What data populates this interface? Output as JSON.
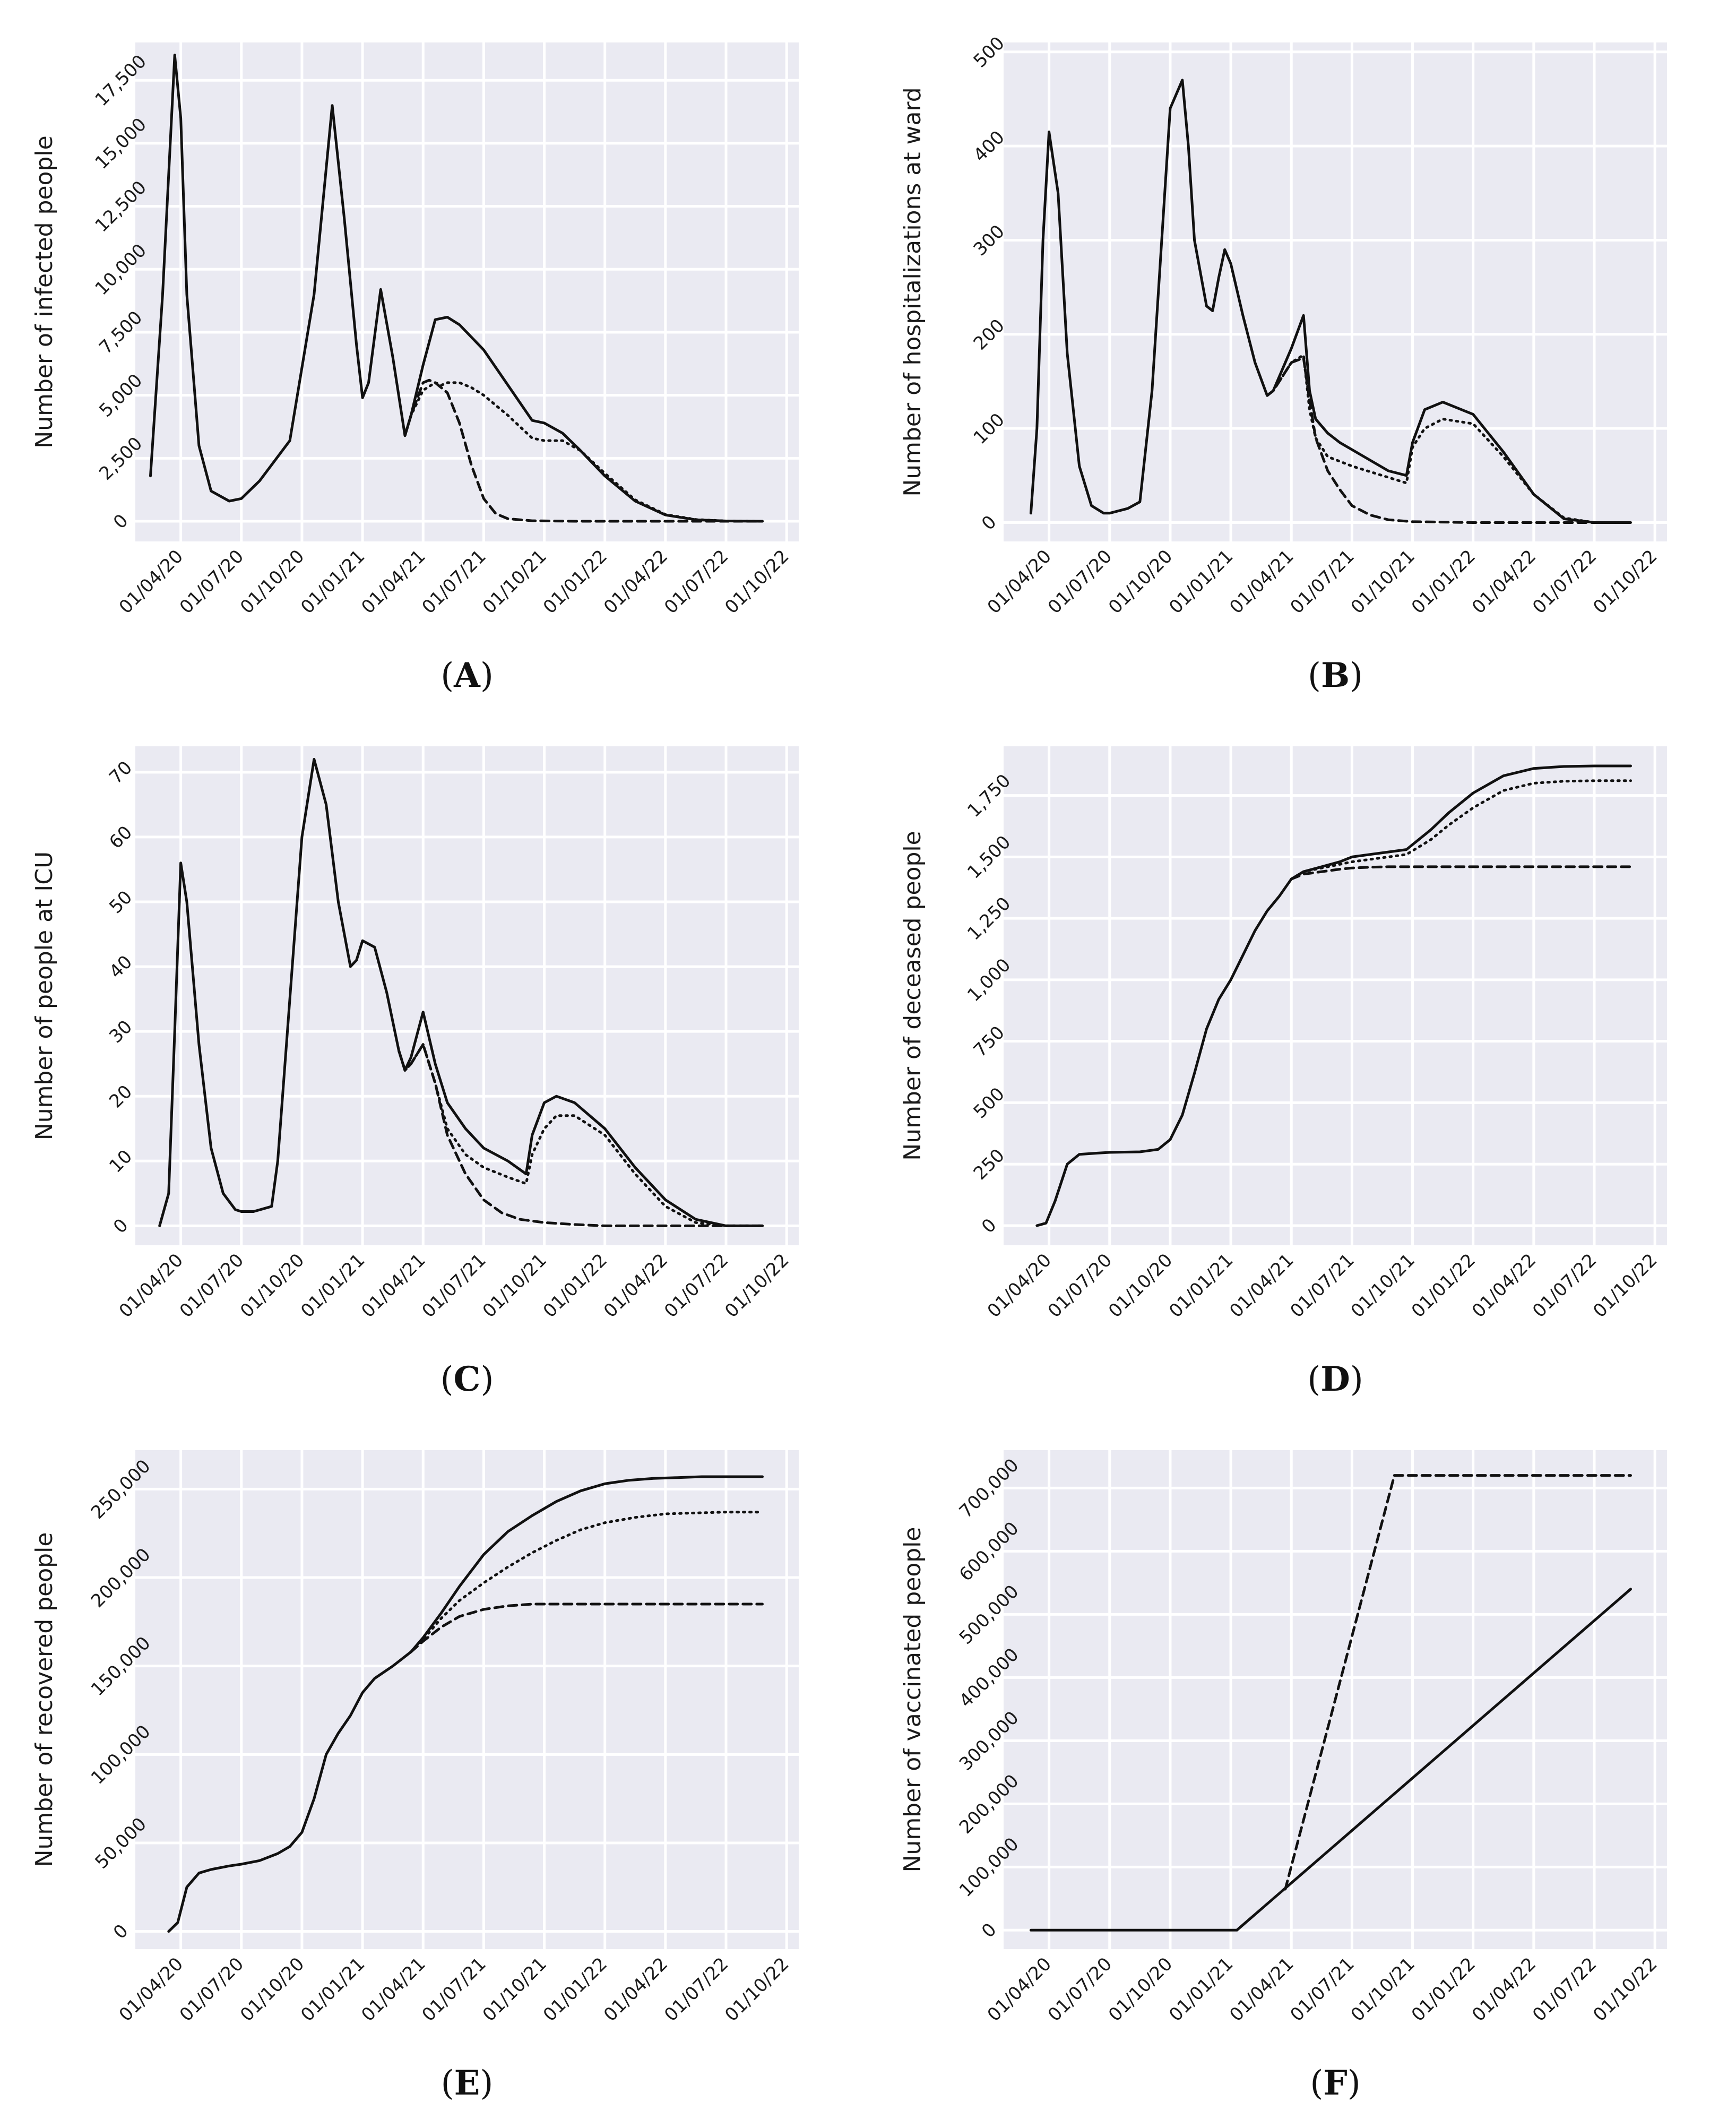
{
  "chart_data": [
    {
      "id": "A",
      "type": "line",
      "caption": "A",
      "ylabel": "Number of infected people",
      "yticks": [
        0,
        2500,
        5000,
        7500,
        10000,
        12500,
        15000,
        17500
      ],
      "ytick_labels": [
        "0",
        "2,500",
        "5,000",
        "7,500",
        "10,000",
        "12,500",
        "15,000",
        "17,500"
      ],
      "ylim": [
        -800,
        19000
      ],
      "xticks": [
        "01/04/20",
        "01/07/20",
        "01/10/20",
        "01/01/21",
        "01/04/21",
        "01/07/21",
        "01/10/21",
        "01/01/22",
        "01/04/22",
        "01/07/22",
        "01/10/22"
      ],
      "series": [
        {
          "name": "solid",
          "style": "solid",
          "x": [
            -0.5,
            -0.3,
            -0.1,
            0.0,
            0.1,
            0.3,
            0.5,
            0.8,
            1.0,
            1.3,
            1.8,
            2.2,
            2.5,
            2.7,
            2.9,
            3.0,
            3.1,
            3.3,
            3.5,
            3.7,
            3.8,
            4.0,
            4.2,
            4.4,
            4.6,
            5.0,
            5.4,
            5.8,
            6.0,
            6.3,
            6.6,
            7.0,
            7.5,
            8.0,
            8.5,
            9.0,
            9.6
          ],
          "y": [
            1800,
            9000,
            18500,
            16000,
            9000,
            3000,
            1200,
            800,
            900,
            1600,
            3200,
            9000,
            16500,
            12000,
            7000,
            4900,
            5500,
            9200,
            6500,
            3400,
            4200,
            6200,
            8000,
            8100,
            7800,
            6800,
            5400,
            4000,
            3900,
            3500,
            2800,
            1800,
            800,
            250,
            60,
            10,
            0
          ]
        },
        {
          "name": "dotted",
          "style": "dotted",
          "x": [
            3.7,
            3.8,
            4.0,
            4.2,
            4.3,
            4.4,
            4.6,
            4.8,
            5.0,
            5.4,
            5.8,
            6.0,
            6.3,
            6.6,
            7.0,
            7.5,
            8.0,
            8.5,
            9.0,
            9.6
          ],
          "y": [
            3400,
            4200,
            5200,
            5500,
            5400,
            5500,
            5500,
            5300,
            5000,
            4200,
            3300,
            3200,
            3200,
            2800,
            1900,
            850,
            270,
            70,
            10,
            0
          ]
        },
        {
          "name": "dashed",
          "style": "dashed",
          "x": [
            3.7,
            3.8,
            4.0,
            4.1,
            4.2,
            4.4,
            4.6,
            4.8,
            5.0,
            5.2,
            5.4,
            5.8,
            6.5,
            7.5,
            8.5,
            9.6
          ],
          "y": [
            3400,
            4200,
            5500,
            5600,
            5500,
            5100,
            3900,
            2200,
            900,
            300,
            100,
            20,
            0,
            0,
            0,
            0
          ]
        }
      ]
    },
    {
      "id": "B",
      "type": "line",
      "caption": "B",
      "ylabel": "Number of hospitalizations at ward",
      "yticks": [
        0,
        100,
        200,
        300,
        400,
        500
      ],
      "ytick_labels": [
        "0",
        "100",
        "200",
        "300",
        "400",
        "500"
      ],
      "ylim": [
        -20,
        510
      ],
      "xticks": [
        "01/04/20",
        "01/07/20",
        "01/10/20",
        "01/01/21",
        "01/04/21",
        "01/07/21",
        "01/10/21",
        "01/01/22",
        "01/04/22",
        "01/07/22",
        "01/10/22"
      ],
      "series": [
        {
          "name": "solid",
          "style": "solid",
          "x": [
            -0.3,
            -0.2,
            -0.1,
            0.0,
            0.15,
            0.3,
            0.5,
            0.7,
            0.9,
            1.0,
            1.3,
            1.5,
            1.7,
            2.0,
            2.2,
            2.3,
            2.4,
            2.6,
            2.7,
            2.8,
            2.9,
            3.0,
            3.2,
            3.4,
            3.6,
            3.7,
            3.8,
            4.0,
            4.2,
            4.3,
            4.4,
            4.6,
            4.8,
            5.2,
            5.6,
            5.9,
            6.0,
            6.2,
            6.5,
            7.0,
            7.5,
            8.0,
            8.5,
            9.0,
            9.6
          ],
          "y": [
            10,
            100,
            300,
            415,
            350,
            180,
            60,
            18,
            10,
            10,
            15,
            22,
            140,
            440,
            470,
            400,
            300,
            230,
            225,
            260,
            290,
            275,
            220,
            170,
            135,
            140,
            155,
            185,
            220,
            140,
            110,
            95,
            85,
            70,
            55,
            50,
            85,
            120,
            128,
            115,
            75,
            30,
            4,
            0,
            0
          ]
        },
        {
          "name": "dotted",
          "style": "dotted",
          "x": [
            3.6,
            3.7,
            3.8,
            4.0,
            4.2,
            4.3,
            4.4,
            4.6,
            5.0,
            5.6,
            5.9,
            6.0,
            6.2,
            6.5,
            7.0,
            7.5,
            8.0,
            8.5,
            9.0,
            9.6
          ],
          "y": [
            135,
            140,
            150,
            170,
            178,
            120,
            90,
            70,
            60,
            48,
            42,
            80,
            100,
            110,
            105,
            70,
            30,
            5,
            0,
            0
          ]
        },
        {
          "name": "dashed",
          "style": "dashed",
          "x": [
            3.6,
            3.7,
            3.8,
            4.0,
            4.2,
            4.3,
            4.4,
            4.6,
            4.8,
            5.0,
            5.3,
            5.6,
            6.0,
            7.0,
            8.0,
            9.6
          ],
          "y": [
            135,
            140,
            150,
            170,
            175,
            130,
            90,
            55,
            35,
            18,
            8,
            3,
            1,
            0,
            0,
            0
          ]
        }
      ]
    },
    {
      "id": "C",
      "type": "line",
      "caption": "C",
      "ylabel": "Number of people at ICU",
      "yticks": [
        0,
        10,
        20,
        30,
        40,
        50,
        60,
        70
      ],
      "ytick_labels": [
        "0",
        "10",
        "20",
        "30",
        "40",
        "50",
        "60",
        "70"
      ],
      "ylim": [
        -3,
        74
      ],
      "xticks": [
        "01/04/20",
        "01/07/20",
        "01/10/20",
        "01/01/21",
        "01/04/21",
        "01/07/21",
        "01/10/21",
        "01/01/22",
        "01/04/22",
        "01/07/22",
        "01/10/22"
      ],
      "series": [
        {
          "name": "solid",
          "style": "solid",
          "x": [
            -0.35,
            -0.2,
            -0.1,
            0.0,
            0.1,
            0.3,
            0.5,
            0.7,
            0.9,
            1.0,
            1.2,
            1.5,
            1.6,
            1.8,
            2.0,
            2.2,
            2.4,
            2.6,
            2.8,
            2.9,
            3.0,
            3.2,
            3.4,
            3.6,
            3.7,
            3.8,
            4.0,
            4.2,
            4.4,
            4.7,
            5.0,
            5.4,
            5.7,
            5.8,
            6.0,
            6.2,
            6.5,
            7.0,
            7.5,
            8.0,
            8.5,
            9.0,
            9.6
          ],
          "y": [
            0,
            5,
            30,
            56,
            50,
            28,
            12,
            5,
            2.5,
            2.2,
            2.2,
            3,
            10,
            35,
            60,
            72,
            65,
            50,
            40,
            41,
            44,
            43,
            36,
            27,
            24,
            26,
            33,
            25,
            19,
            15,
            12,
            10,
            8,
            14,
            19,
            20,
            19,
            15,
            9,
            4,
            1,
            0,
            0
          ]
        },
        {
          "name": "dotted",
          "style": "dotted",
          "x": [
            3.6,
            3.7,
            3.8,
            4.0,
            4.2,
            4.4,
            4.7,
            5.0,
            5.4,
            5.7,
            5.8,
            6.0,
            6.2,
            6.5,
            7.0,
            7.5,
            8.0,
            8.5,
            9.0,
            9.6
          ],
          "y": [
            27,
            24,
            25,
            28,
            22,
            15,
            11,
            9,
            7.5,
            6.5,
            11,
            15,
            17,
            17,
            14,
            8,
            3,
            0.5,
            0,
            0
          ]
        },
        {
          "name": "dashed",
          "style": "dashed",
          "x": [
            3.6,
            3.7,
            3.8,
            4.0,
            4.2,
            4.4,
            4.7,
            5.0,
            5.3,
            5.6,
            6.0,
            6.5,
            7.0,
            8.0,
            9.6
          ],
          "y": [
            27,
            24,
            25,
            28,
            22,
            14,
            8,
            4,
            2,
            1,
            0.5,
            0.2,
            0,
            0,
            0
          ]
        }
      ]
    },
    {
      "id": "D",
      "type": "line",
      "caption": "D",
      "ylabel": "Number of deceased people",
      "yticks": [
        0,
        250,
        500,
        750,
        1000,
        1250,
        1500,
        1750
      ],
      "ytick_labels": [
        "0",
        "250",
        "500",
        "750",
        "1,000",
        "1,250",
        "1,500",
        "1,750"
      ],
      "ylim": [
        -80,
        1950
      ],
      "xticks": [
        "01/04/20",
        "01/07/20",
        "01/10/20",
        "01/01/21",
        "01/04/21",
        "01/07/21",
        "01/10/21",
        "01/01/22",
        "01/04/22",
        "01/07/22",
        "01/10/22"
      ],
      "series": [
        {
          "name": "solid",
          "style": "solid",
          "x": [
            -0.2,
            -0.05,
            0.1,
            0.3,
            0.5,
            0.8,
            1.0,
            1.5,
            1.8,
            2.0,
            2.2,
            2.4,
            2.6,
            2.8,
            3.0,
            3.2,
            3.4,
            3.6,
            3.8,
            4.0,
            4.2,
            4.5,
            4.8,
            5.0,
            5.3,
            5.6,
            5.9,
            6.0,
            6.3,
            6.6,
            7.0,
            7.5,
            8.0,
            8.5,
            9.0,
            9.6
          ],
          "y": [
            0,
            10,
            100,
            250,
            290,
            295,
            298,
            300,
            310,
            350,
            450,
            620,
            800,
            920,
            1000,
            1100,
            1200,
            1280,
            1340,
            1410,
            1440,
            1460,
            1480,
            1500,
            1510,
            1520,
            1530,
            1550,
            1610,
            1680,
            1760,
            1830,
            1860,
            1868,
            1870,
            1870
          ]
        },
        {
          "name": "dotted",
          "style": "dotted",
          "x": [
            4.0,
            4.2,
            4.5,
            4.8,
            5.0,
            5.3,
            5.6,
            5.9,
            6.0,
            6.3,
            6.6,
            7.0,
            7.5,
            8.0,
            8.5,
            9.0,
            9.6
          ],
          "y": [
            1410,
            1440,
            1455,
            1470,
            1480,
            1490,
            1500,
            1510,
            1525,
            1570,
            1630,
            1700,
            1770,
            1800,
            1808,
            1810,
            1810
          ]
        },
        {
          "name": "dashed",
          "style": "dashed",
          "x": [
            4.0,
            4.2,
            4.5,
            4.8,
            5.0,
            5.3,
            5.6,
            6.0,
            7.0,
            8.0,
            9.6
          ],
          "y": [
            1410,
            1430,
            1440,
            1450,
            1455,
            1458,
            1460,
            1460,
            1460,
            1460,
            1460
          ]
        }
      ]
    },
    {
      "id": "E",
      "type": "line",
      "caption": "E",
      "ylabel": "Number of recovered people",
      "yticks": [
        0,
        50000,
        100000,
        150000,
        200000,
        250000
      ],
      "ytick_labels": [
        "0",
        "50,000",
        "100,000",
        "150,000",
        "200,000",
        "250,000"
      ],
      "ylim": [
        -10000,
        272000
      ],
      "xticks": [
        "01/04/20",
        "01/07/20",
        "01/10/20",
        "01/01/21",
        "01/04/21",
        "01/07/21",
        "01/10/21",
        "01/01/22",
        "01/04/22",
        "01/07/22",
        "01/10/22"
      ],
      "series": [
        {
          "name": "solid",
          "style": "solid",
          "x": [
            -0.2,
            -0.05,
            0.1,
            0.3,
            0.5,
            0.8,
            1.0,
            1.3,
            1.6,
            1.8,
            2.0,
            2.2,
            2.4,
            2.6,
            2.8,
            3.0,
            3.2,
            3.5,
            3.8,
            4.0,
            4.3,
            4.6,
            5.0,
            5.4,
            5.8,
            6.2,
            6.6,
            7.0,
            7.4,
            7.8,
            8.2,
            8.6,
            9.0,
            9.6
          ],
          "y": [
            0,
            5000,
            25000,
            33000,
            35000,
            37000,
            38000,
            40000,
            44000,
            48000,
            56000,
            75000,
            100000,
            112000,
            122000,
            135000,
            143000,
            150000,
            158000,
            166000,
            180000,
            195000,
            213000,
            226000,
            235000,
            243000,
            249000,
            253000,
            255000,
            256000,
            256500,
            257000,
            257000,
            257000
          ]
        },
        {
          "name": "dotted",
          "style": "dotted",
          "x": [
            3.8,
            4.0,
            4.3,
            4.6,
            5.0,
            5.4,
            5.8,
            6.2,
            6.6,
            7.0,
            7.5,
            8.0,
            8.5,
            9.0,
            9.6
          ],
          "y": [
            158000,
            165000,
            177000,
            187000,
            197000,
            206000,
            214000,
            221000,
            227000,
            231000,
            234000,
            236000,
            236500,
            237000,
            237000
          ]
        },
        {
          "name": "dashed",
          "style": "dashed",
          "x": [
            3.8,
            4.0,
            4.3,
            4.6,
            5.0,
            5.4,
            5.8,
            6.2,
            7.0,
            8.0,
            9.6
          ],
          "y": [
            158000,
            164000,
            172000,
            178000,
            182000,
            184000,
            185000,
            185000,
            185000,
            185000,
            185000
          ]
        }
      ]
    },
    {
      "id": "F",
      "type": "line",
      "caption": "F",
      "ylabel": "Number of vaccinated people",
      "yticks": [
        0,
        100000,
        200000,
        300000,
        400000,
        500000,
        600000,
        700000
      ],
      "ytick_labels": [
        "0",
        "100,000",
        "200,000",
        "300,000",
        "400,000",
        "500,000",
        "600,000",
        "700,000"
      ],
      "ylim": [
        -30000,
        760000
      ],
      "xticks": [
        "01/04/20",
        "01/07/20",
        "01/10/20",
        "01/01/21",
        "01/04/21",
        "01/07/21",
        "01/10/21",
        "01/01/22",
        "01/04/22",
        "01/07/22",
        "01/10/22"
      ],
      "series": [
        {
          "name": "solid",
          "style": "solid",
          "x": [
            -0.3,
            3.1,
            9.6
          ],
          "y": [
            0,
            0,
            540000
          ]
        },
        {
          "name": "dashed",
          "style": "dashed",
          "x": [
            3.9,
            5.7,
            9.6
          ],
          "y": [
            65000,
            720000,
            720000
          ]
        }
      ]
    }
  ]
}
